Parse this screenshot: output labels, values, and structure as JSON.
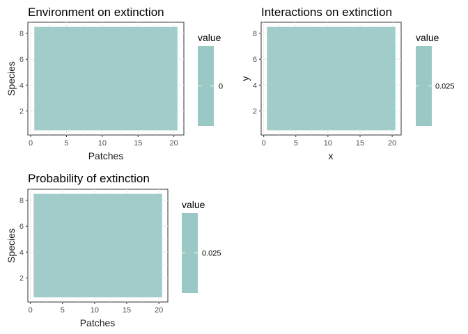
{
  "chart_data": [
    {
      "type": "heatmap",
      "title": "Environment on extinction",
      "xlabel": "Patches",
      "ylabel": "Species",
      "xlim": [
        0.5,
        20.5
      ],
      "ylim": [
        0.5,
        8.5
      ],
      "x_ticks": [
        0,
        5,
        10,
        15,
        20
      ],
      "y_ticks": [
        2,
        4,
        6,
        8
      ],
      "n_cols": 20,
      "n_rows": 8,
      "value": 0,
      "fill_color": "#99c8c5",
      "grid": true,
      "legend": {
        "title": "value",
        "labels": [
          "0"
        ],
        "position": "right"
      }
    },
    {
      "type": "heatmap",
      "title": "Interactions on extinction",
      "xlabel": "x",
      "ylabel": "y",
      "xlim": [
        0.5,
        20.5
      ],
      "ylim": [
        0.5,
        8.5
      ],
      "x_ticks": [
        0,
        5,
        10,
        15,
        20
      ],
      "y_ticks": [
        2,
        4,
        6,
        8
      ],
      "n_cols": 20,
      "n_rows": 8,
      "value": 0.025,
      "fill_color": "#99c8c5",
      "grid": true,
      "legend": {
        "title": "value",
        "labels": [
          "0.025"
        ],
        "position": "right"
      }
    },
    {
      "type": "heatmap",
      "title": "Probability of extinction",
      "xlabel": "Patches",
      "ylabel": "Species",
      "xlim": [
        0.5,
        20.5
      ],
      "ylim": [
        0.5,
        8.5
      ],
      "x_ticks": [
        0,
        5,
        10,
        15,
        20
      ],
      "y_ticks": [
        2,
        4,
        6,
        8
      ],
      "n_cols": 20,
      "n_rows": 8,
      "value": 0.025,
      "fill_color": "#99c8c5",
      "grid": true,
      "legend": {
        "title": "value",
        "labels": [
          "0.025"
        ],
        "position": "right"
      }
    }
  ]
}
